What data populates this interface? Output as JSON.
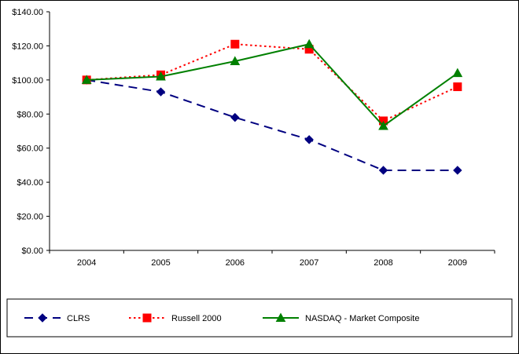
{
  "chart_data": {
    "type": "line",
    "title": "",
    "xlabel": "",
    "ylabel": "",
    "categories": [
      "2004",
      "2005",
      "2006",
      "2007",
      "2008",
      "2009"
    ],
    "series": [
      {
        "name": "CLRS",
        "values": [
          100,
          93,
          78,
          65,
          47,
          47
        ],
        "color": "#000080",
        "line_style": "dashed",
        "marker": "diamond"
      },
      {
        "name": "Russell 2000",
        "values": [
          100,
          103,
          121,
          118,
          76,
          96
        ],
        "color": "#FF0000",
        "line_style": "dotted",
        "marker": "square"
      },
      {
        "name": "NASDAQ - Market Composite",
        "values": [
          100,
          102,
          111,
          121,
          73,
          104
        ],
        "color": "#008000",
        "line_style": "solid",
        "marker": "triangle"
      }
    ],
    "ylim": [
      0,
      140
    ],
    "ytick_step": 20,
    "ytick_labels": [
      "$0.00",
      "$20.00",
      "$40.00",
      "$60.00",
      "$80.00",
      "$100.00",
      "$120.00",
      "$140.00"
    ],
    "grid": false,
    "legend_position": "bottom",
    "axis_color": "#000000",
    "background_color": "#FFFFFF"
  }
}
